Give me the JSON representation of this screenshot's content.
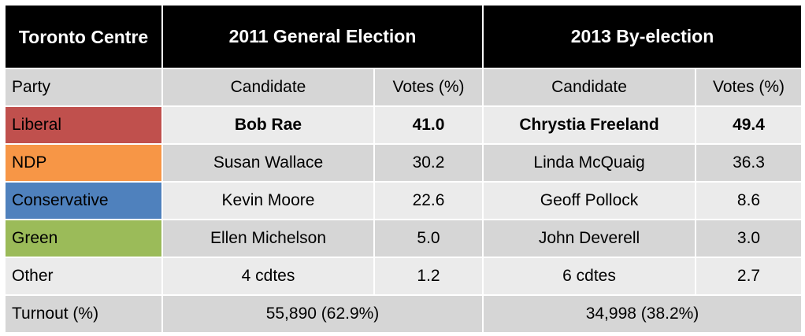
{
  "header": {
    "title": "Toronto Centre",
    "elections": [
      "2011 General Election",
      "2013 By-election"
    ]
  },
  "columns": [
    "Party",
    "Candidate",
    "Votes (%)",
    "Candidate",
    "Votes (%)"
  ],
  "rows": [
    {
      "party": "Liberal",
      "color": "#c0504d",
      "cells": [
        "Bob Rae",
        "41.0",
        "Chrystia Freeland",
        "49.4"
      ]
    },
    {
      "party": "NDP",
      "color": "#f79646",
      "cells": [
        "Susan Wallace",
        "30.2",
        "Linda McQuaig",
        "36.3"
      ]
    },
    {
      "party": "Conservative",
      "color": "#4f81bd",
      "cells": [
        "Kevin Moore",
        "22.6",
        "Geoff Pollock",
        "8.6"
      ]
    },
    {
      "party": "Green",
      "color": "#9bbb59",
      "cells": [
        "Ellen Michelson",
        "5.0",
        "John Deverell",
        "3.0"
      ]
    },
    {
      "party": "Other",
      "cells": [
        "4 cdtes",
        "1.2",
        "6 cdtes",
        "2.7"
      ]
    }
  ],
  "turnout": {
    "label": "Turnout (%)",
    "values": [
      "55,890 (62.9%)",
      "34,998 (38.2%)"
    ]
  }
}
